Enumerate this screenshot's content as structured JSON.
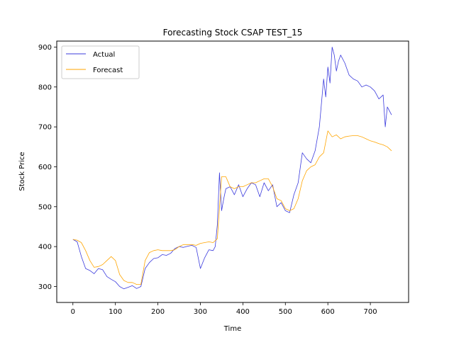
{
  "chart_data": {
    "type": "line",
    "title": "Forecasting Stock CSAP TEST_15",
    "xlabel": "Time",
    "ylabel": "Stock Price",
    "xlim": [
      -38,
      790
    ],
    "ylim": [
      260,
      915
    ],
    "xticks": [
      0,
      100,
      200,
      300,
      400,
      500,
      600,
      700
    ],
    "yticks": [
      300,
      400,
      500,
      600,
      700,
      800,
      900
    ],
    "grid": false,
    "legend_position": "upper-left",
    "series": [
      {
        "name": "Actual",
        "color": "#3b3bdd",
        "x": [
          0,
          10,
          20,
          30,
          40,
          50,
          60,
          70,
          80,
          90,
          100,
          110,
          120,
          130,
          140,
          150,
          160,
          170,
          180,
          190,
          200,
          210,
          220,
          230,
          240,
          250,
          260,
          270,
          280,
          290,
          300,
          310,
          320,
          330,
          335,
          340,
          345,
          350,
          355,
          360,
          370,
          380,
          390,
          400,
          410,
          420,
          430,
          440,
          450,
          460,
          470,
          480,
          490,
          500,
          510,
          520,
          530,
          540,
          550,
          560,
          570,
          580,
          590,
          595,
          600,
          605,
          610,
          615,
          620,
          625,
          630,
          640,
          650,
          660,
          670,
          680,
          690,
          700,
          710,
          720,
          730,
          735,
          740,
          750
        ],
        "y": [
          418,
          412,
          375,
          345,
          340,
          332,
          345,
          342,
          325,
          318,
          312,
          300,
          294,
          298,
          302,
          295,
          300,
          345,
          360,
          370,
          372,
          380,
          378,
          383,
          395,
          400,
          398,
          401,
          403,
          398,
          345,
          372,
          392,
          390,
          400,
          455,
          585,
          490,
          520,
          545,
          550,
          530,
          555,
          525,
          545,
          560,
          555,
          525,
          560,
          540,
          555,
          500,
          510,
          490,
          485,
          530,
          560,
          635,
          620,
          610,
          640,
          700,
          820,
          775,
          850,
          810,
          900,
          880,
          840,
          865,
          880,
          860,
          830,
          820,
          815,
          800,
          805,
          800,
          790,
          770,
          780,
          700,
          750,
          730
        ]
      },
      {
        "name": "Forecast",
        "color": "#ffa500",
        "x": [
          0,
          10,
          20,
          30,
          40,
          50,
          60,
          70,
          80,
          90,
          100,
          110,
          120,
          130,
          140,
          150,
          160,
          170,
          180,
          190,
          200,
          210,
          220,
          230,
          240,
          250,
          260,
          270,
          280,
          290,
          300,
          310,
          320,
          330,
          340,
          350,
          360,
          370,
          380,
          390,
          400,
          410,
          420,
          430,
          440,
          450,
          460,
          470,
          480,
          490,
          500,
          510,
          520,
          530,
          540,
          550,
          560,
          570,
          580,
          590,
          600,
          610,
          620,
          630,
          640,
          650,
          660,
          670,
          680,
          690,
          700,
          710,
          720,
          730,
          740,
          750
        ],
        "y": [
          418,
          416,
          410,
          390,
          365,
          348,
          350,
          355,
          365,
          375,
          365,
          330,
          315,
          310,
          310,
          305,
          305,
          365,
          385,
          390,
          392,
          390,
          390,
          390,
          392,
          400,
          405,
          405,
          405,
          403,
          408,
          410,
          412,
          410,
          420,
          575,
          575,
          550,
          545,
          550,
          550,
          555,
          560,
          560,
          565,
          570,
          570,
          550,
          520,
          515,
          495,
          490,
          495,
          520,
          565,
          590,
          600,
          605,
          625,
          635,
          690,
          675,
          680,
          670,
          675,
          677,
          678,
          678,
          675,
          670,
          665,
          662,
          658,
          655,
          650,
          640
        ]
      }
    ]
  }
}
